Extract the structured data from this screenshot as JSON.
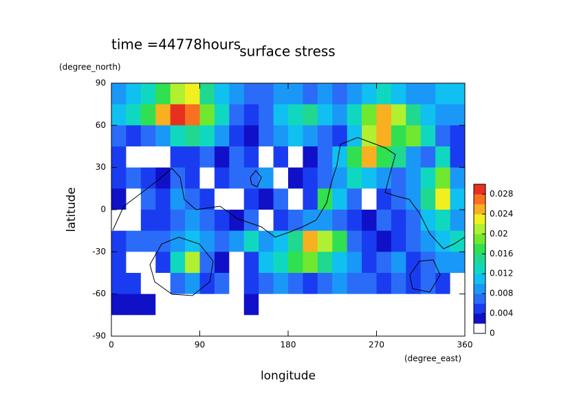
{
  "chart_data": {
    "type": "heatmap",
    "annotation": "time =44778hours",
    "title": "surface stress",
    "x_label": "longitude",
    "x_unit": "(degree_east)",
    "y_label": "latitude",
    "y_unit": "(degree_north)",
    "xlim": [
      0,
      360
    ],
    "ylim": [
      -90,
      90
    ],
    "xticks": [
      0,
      90,
      180,
      270,
      360
    ],
    "yticks": [
      -90,
      -60,
      -30,
      0,
      30,
      60,
      90
    ],
    "z": [
      [
        0.008,
        0.01,
        0.012,
        0.016,
        0.02,
        0.022,
        0.014,
        0.01,
        0.008,
        0.006,
        0.006,
        0.008,
        0.008,
        0.006,
        0.008,
        0.006,
        0.008,
        0.01,
        0.012,
        0.01,
        0.008,
        0.008,
        0.01,
        0.01
      ],
      [
        0.01,
        0.012,
        0.016,
        0.024,
        0.028,
        0.026,
        0.018,
        0.012,
        0.006,
        0.004,
        0.006,
        0.01,
        0.012,
        0.014,
        0.01,
        0.008,
        0.012,
        0.018,
        0.024,
        0.02,
        0.014,
        0.01,
        0.008,
        0.008
      ],
      [
        0.006,
        0.004,
        0.006,
        0.008,
        0.012,
        0.014,
        0.012,
        0.008,
        0.004,
        0.002,
        0.006,
        0.008,
        0.01,
        0.008,
        0.006,
        0.004,
        0.01,
        0.02,
        0.024,
        0.016,
        0.018,
        0.012,
        0.006,
        0.004
      ],
      [
        0.004,
        0,
        0,
        0,
        0.004,
        0.004,
        0.006,
        0.002,
        0.006,
        0.004,
        0,
        0.004,
        0,
        0.002,
        0.006,
        0.01,
        0.016,
        0.024,
        0.016,
        0.014,
        0.008,
        0.006,
        0.012,
        0.004
      ],
      [
        0.004,
        0.006,
        0.004,
        0.002,
        0.006,
        0.004,
        0,
        0.004,
        0.006,
        0.006,
        0.008,
        0,
        0.002,
        0.004,
        0.006,
        0.008,
        0.012,
        0.01,
        0.008,
        0.006,
        0.008,
        0.012,
        0.018,
        0.008
      ],
      [
        0.002,
        0,
        0.006,
        0.004,
        0.008,
        0.006,
        0.004,
        0,
        0,
        0.004,
        0.002,
        0.006,
        0,
        0.004,
        0.016,
        0.01,
        0.006,
        0,
        0.004,
        0.006,
        0.008,
        0.014,
        0.022,
        0.01
      ],
      [
        0,
        0,
        0.004,
        0.004,
        0.006,
        0.008,
        0.006,
        0.004,
        0.002,
        0.006,
        0,
        0.004,
        0.006,
        0.008,
        0.008,
        0.006,
        0.004,
        0.002,
        0.006,
        0.004,
        0.006,
        0.01,
        0.012,
        0.008
      ],
      [
        0.004,
        0.006,
        0.006,
        0.006,
        0.008,
        0.01,
        0.008,
        0.006,
        0.008,
        0.012,
        0.008,
        0.01,
        0.014,
        0.024,
        0.02,
        0.016,
        0.006,
        0.004,
        0.002,
        0.004,
        0.006,
        0.008,
        0.01,
        0.012
      ],
      [
        0.004,
        0,
        0,
        0.004,
        0.012,
        0.02,
        0.006,
        0.002,
        0,
        0.004,
        0.01,
        0.012,
        0.016,
        0.018,
        0.014,
        0.01,
        0.008,
        0.004,
        0.006,
        0.008,
        0.004,
        0.006,
        0.008,
        0.008
      ],
      [
        0.004,
        0.004,
        0,
        0,
        0.006,
        0.008,
        0.004,
        0.006,
        0,
        0.004,
        0.006,
        0.008,
        0.006,
        0.004,
        0.006,
        0.008,
        0.006,
        0.006,
        0.004,
        0.006,
        0.004,
        0.006,
        0.004,
        0
      ],
      [
        0.002,
        0.002,
        0.002,
        0,
        0,
        0,
        0,
        0,
        0,
        0.002,
        0,
        0,
        0,
        0,
        0,
        0,
        0,
        0,
        0,
        0,
        0,
        0,
        0,
        0
      ],
      [
        0,
        0,
        0,
        0,
        0,
        0,
        0,
        0,
        0,
        0,
        0,
        0,
        0,
        0,
        0,
        0,
        0,
        0,
        0,
        0,
        0,
        0,
        0,
        0
      ]
    ],
    "colorbar": {
      "clim": [
        0,
        0.03
      ],
      "ticks": [
        0,
        0.004,
        0.008,
        0.012,
        0.016,
        0.02,
        0.024,
        0.028
      ],
      "colors": [
        "#ffffff",
        "#1010c8",
        "#1a3cf0",
        "#2a6cf8",
        "#1a98f8",
        "#10c0f0",
        "#10d8c0",
        "#20d890",
        "#30e050",
        "#70e830",
        "#b0f030",
        "#f0f020",
        "#f8b020",
        "#f87020",
        "#e83020"
      ]
    }
  }
}
